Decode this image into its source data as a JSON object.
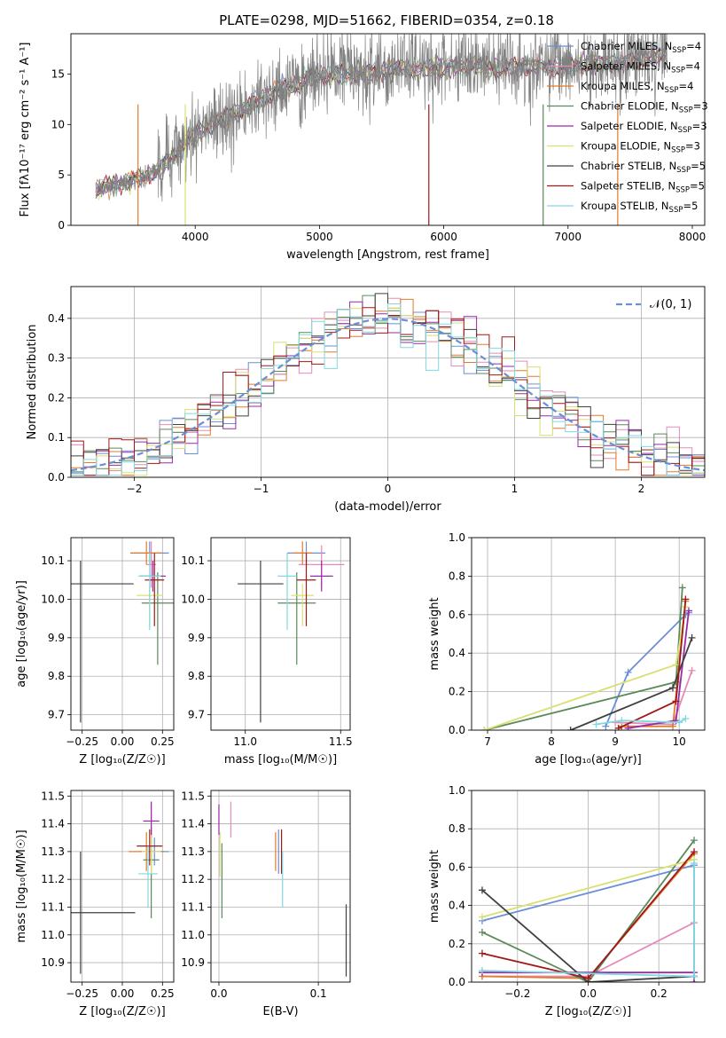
{
  "figure_title": "PLATE=0298, MJD=51662, FIBERID=0354, z=0.18",
  "colors": [
    "#6a8fd8",
    "#e68ab8",
    "#e07b2a",
    "#5a8a5a",
    "#9a2aa8",
    "#d8e070",
    "#404040",
    "#a01818",
    "#80d8e0"
  ],
  "chart_data": [
    {
      "id": "spectrum",
      "type": "line",
      "title": "PLATE=0298, MJD=51662, FIBERID=0354, z=0.18",
      "xlabel": "wavelength [Angstrom, rest frame]",
      "ylabel": "Flux [fλ10⁻¹⁷ erg cm⁻² s⁻¹ A⁻¹]",
      "xlim": [
        3000,
        8100
      ],
      "ylim": [
        0,
        19
      ],
      "xticks": [
        "4000",
        "5000",
        "6000",
        "7000",
        "8000"
      ],
      "yticks": [
        "0",
        "5",
        "10",
        "15"
      ],
      "data_color": "#808080",
      "legend": [
        "Chabrier MILES, N_SSP=4",
        "Salpeter MILES, N_SSP=4",
        "Kroupa MILES, N_SSP=4",
        "Chabrier ELODIE, N_SSP=3",
        "Salpeter ELODIE, N_SSP=3",
        "Kroupa ELODIE, N_SSP=3",
        "Chabrier STELIB, N_SSP=5",
        "Salpeter STELIB, N_SSP=5",
        "Kroupa STELIB, N_SSP=5"
      ],
      "legend_placement": "right",
      "continuum": {
        "x": [
          3200,
          3400,
          3600,
          3800,
          3950,
          4050,
          4200,
          4400,
          4600,
          4800,
          5000,
          5200,
          5400,
          5600,
          5800,
          6000,
          6200,
          6400,
          6600,
          6800,
          7000,
          7200,
          7400,
          7600,
          7800
        ],
        "y": [
          3.5,
          4.2,
          4.8,
          6.5,
          8.5,
          9.5,
          10.5,
          11.5,
          13.0,
          14.0,
          14.8,
          15.0,
          15.2,
          15.5,
          15.5,
          15.6,
          15.8,
          15.6,
          15.7,
          15.8,
          15.8,
          16.0,
          16.1,
          16.5,
          17.0
        ]
      }
    },
    {
      "id": "residuals",
      "type": "line",
      "xlabel": "(data-model)/error",
      "ylabel": "Normed distribution",
      "xlim": [
        -2.5,
        2.5
      ],
      "ylim": [
        0,
        0.48
      ],
      "xticks": [
        "−2",
        "−1",
        "0",
        "1",
        "2"
      ],
      "yticks": [
        "0.0",
        "0.1",
        "0.2",
        "0.3",
        "0.4"
      ],
      "legend": [
        "𝒩(0, 1)"
      ],
      "legend_placement": "top-right",
      "grid": true
    },
    {
      "id": "age-vs-z",
      "type": "scatter",
      "xlabel": "Z [log₁₀(Z/Z☉)]",
      "ylabel": "age  [log₁₀(age/yr)]",
      "xlim": [
        -0.32,
        0.32
      ],
      "ylim": [
        9.66,
        10.16
      ],
      "xticks": [
        "−0.25",
        "0.00",
        "0.25"
      ],
      "yticks": [
        "9.7",
        "9.8",
        "9.9",
        "10.0",
        "10.1"
      ],
      "points": [
        {
          "x": 0.17,
          "y": 10.12,
          "xerr": 0.12,
          "yerr": [
            0.03,
            0.03
          ]
        },
        {
          "x": 0.18,
          "y": 10.09,
          "xerr": 0.03,
          "yerr": [
            0.06,
            0.06
          ]
        },
        {
          "x": 0.15,
          "y": 10.12,
          "xerr": 0.1,
          "yerr": [
            0.03,
            0.03
          ]
        },
        {
          "x": 0.22,
          "y": 9.99,
          "xerr": 0.1,
          "yerr": [
            0.16,
            0.08
          ]
        },
        {
          "x": 0.19,
          "y": 10.06,
          "xerr": 0.08,
          "yerr": [
            0.04,
            0.04
          ]
        },
        {
          "x": 0.17,
          "y": 10.01,
          "xerr": 0.08,
          "yerr": [
            0.08,
            0.03
          ]
        },
        {
          "x": -0.26,
          "y": 10.04,
          "xerr": 0.33,
          "yerr": [
            0.36,
            0.06
          ]
        },
        {
          "x": 0.2,
          "y": 10.05,
          "xerr": 0.06,
          "yerr": [
            0.12,
            0.07
          ]
        },
        {
          "x": 0.17,
          "y": 10.06,
          "xerr": 0.07,
          "yerr": [
            0.14,
            0.06
          ]
        }
      ]
    },
    {
      "id": "age-vs-mass",
      "type": "scatter",
      "xlabel": "mass [log₁₀(M/M☉)]",
      "ylabel": "",
      "xlim": [
        10.82,
        11.55
      ],
      "ylim": [
        9.66,
        10.16
      ],
      "xticks": [
        "11.0",
        "11.5"
      ],
      "yticks": [
        "9.7",
        "9.8",
        "9.9",
        "10.0",
        "10.1"
      ],
      "points": [
        {
          "x": 11.32,
          "y": 10.12,
          "xerr": 0.1,
          "yerr": [
            0.03,
            0.03
          ]
        },
        {
          "x": 11.4,
          "y": 10.09,
          "xerr": 0.12,
          "yerr": [
            0.06,
            0.05
          ]
        },
        {
          "x": 11.3,
          "y": 10.12,
          "xerr": 0.05,
          "yerr": [
            0.03,
            0.03
          ]
        },
        {
          "x": 11.27,
          "y": 9.99,
          "xerr": 0.1,
          "yerr": [
            0.16,
            0.08
          ]
        },
        {
          "x": 11.4,
          "y": 10.06,
          "xerr": 0.06,
          "yerr": [
            0.04,
            0.04
          ]
        },
        {
          "x": 11.3,
          "y": 10.01,
          "xerr": 0.06,
          "yerr": [
            0.08,
            0.03
          ]
        },
        {
          "x": 11.08,
          "y": 10.04,
          "xerr": 0.12,
          "yerr": [
            0.36,
            0.06
          ]
        },
        {
          "x": 11.32,
          "y": 10.05,
          "xerr": 0.05,
          "yerr": [
            0.12,
            0.07
          ]
        },
        {
          "x": 11.22,
          "y": 10.06,
          "xerr": 0.05,
          "yerr": [
            0.14,
            0.06
          ]
        }
      ]
    },
    {
      "id": "weight-vs-age",
      "type": "line",
      "xlabel": "age  [log₁₀(age/yr)]",
      "ylabel": "mass weight",
      "xlim": [
        6.75,
        10.4
      ],
      "ylim": [
        0,
        1.0
      ],
      "xticks": [
        "7",
        "8",
        "9",
        "10"
      ],
      "yticks": [
        "0.0",
        "0.2",
        "0.4",
        "0.6",
        "0.8",
        "1.0"
      ],
      "grid": true,
      "series": [
        {
          "x": [
            8.85,
            9.2,
            10.1,
            10.15
          ],
          "y": [
            0.02,
            0.3,
            0.6,
            0.61
          ]
        },
        {
          "x": [
            9.0,
            9.9,
            10.2
          ],
          "y": [
            0.04,
            0.03,
            0.31
          ]
        },
        {
          "x": [
            9.1,
            9.9,
            10.1
          ],
          "y": [
            0.02,
            0.02,
            0.67
          ]
        },
        {
          "x": [
            6.95,
            9.95,
            10.05
          ],
          "y": [
            0.0,
            0.25,
            0.74
          ]
        },
        {
          "x": [
            9.2,
            9.95,
            10.15
          ],
          "y": [
            0.01,
            0.05,
            0.62
          ]
        },
        {
          "x": [
            6.95,
            9.95,
            10.1
          ],
          "y": [
            0.0,
            0.34,
            0.64
          ]
        },
        {
          "x": [
            8.3,
            9.9,
            10.2
          ],
          "y": [
            0.0,
            0.22,
            0.48
          ]
        },
        {
          "x": [
            9.05,
            9.95,
            10.1
          ],
          "y": [
            0.01,
            0.15,
            0.68
          ]
        },
        {
          "x": [
            8.7,
            9.1,
            10.0,
            10.1
          ],
          "y": [
            0.03,
            0.05,
            0.04,
            0.06
          ]
        }
      ]
    },
    {
      "id": "mass-vs-z",
      "type": "scatter",
      "xlabel": "Z [log₁₀(Z/Z☉)]",
      "ylabel": "mass [log₁₀(M/M☉)]",
      "xlim": [
        -0.32,
        0.32
      ],
      "ylim": [
        10.83,
        11.52
      ],
      "xticks": [
        "−0.25",
        "0.00",
        "0.25"
      ],
      "yticks": [
        "10.9",
        "11.0",
        "11.1",
        "11.2",
        "11.3",
        "11.4",
        "11.5"
      ],
      "points": [
        {
          "x": 0.2,
          "y": 11.3,
          "xerr": 0.09,
          "yerr": [
            0.05,
            0.05
          ]
        },
        {
          "x": 0.18,
          "y": 11.41,
          "xerr": 0.05,
          "yerr": [
            0.06,
            0.07
          ]
        },
        {
          "x": 0.15,
          "y": 11.3,
          "xerr": 0.11,
          "yerr": [
            0.07,
            0.07
          ]
        },
        {
          "x": 0.18,
          "y": 11.27,
          "xerr": 0.05,
          "yerr": [
            0.21,
            0.12
          ]
        },
        {
          "x": 0.18,
          "y": 11.41,
          "xerr": 0.05,
          "yerr": [
            0.06,
            0.07
          ]
        },
        {
          "x": 0.18,
          "y": 11.3,
          "xerr": 0.06,
          "yerr": [
            0.08,
            0.06
          ]
        },
        {
          "x": -0.26,
          "y": 11.08,
          "xerr": 0.34,
          "yerr": [
            0.22,
            0.22
          ]
        },
        {
          "x": 0.17,
          "y": 11.32,
          "xerr": 0.08,
          "yerr": [
            0.07,
            0.06
          ]
        },
        {
          "x": 0.16,
          "y": 11.22,
          "xerr": 0.06,
          "yerr": [
            0.12,
            0.1
          ]
        }
      ]
    },
    {
      "id": "mass-vs-ebv",
      "type": "scatter",
      "xlabel": "E(B-V)",
      "ylabel": "",
      "xlim": [
        -0.008,
        0.132
      ],
      "ylim": [
        10.83,
        11.52
      ],
      "xticks": [
        "0.0",
        "0.1"
      ],
      "yticks": [
        "10.9",
        "11.0",
        "11.1",
        "11.2",
        "11.3",
        "11.4",
        "11.5"
      ],
      "points": [
        {
          "x": 0.06,
          "y": 11.3,
          "yerr": [
            0.08,
            0.08
          ]
        },
        {
          "x": 0.012,
          "y": 11.41,
          "yerr": [
            0.06,
            0.07
          ]
        },
        {
          "x": 0.057,
          "y": 11.3,
          "yerr": [
            0.07,
            0.07
          ]
        },
        {
          "x": 0.003,
          "y": 11.21,
          "yerr": [
            0.15,
            0.12
          ]
        },
        {
          "x": 0.0,
          "y": 11.41,
          "yerr": [
            0.05,
            0.06
          ]
        },
        {
          "x": 0.001,
          "y": 11.29,
          "yerr": [
            0.08,
            0.08
          ]
        },
        {
          "x": 0.128,
          "y": 10.98,
          "yerr": [
            0.13,
            0.13
          ]
        },
        {
          "x": 0.063,
          "y": 11.3,
          "yerr": [
            0.08,
            0.08
          ]
        },
        {
          "x": 0.064,
          "y": 11.2,
          "yerr": [
            0.1,
            0.1
          ]
        }
      ]
    },
    {
      "id": "weight-vs-z",
      "type": "line",
      "xlabel": "Z [log₁₀(Z/Z☉)]",
      "ylabel": "mass weight",
      "xlim": [
        -0.33,
        0.33
      ],
      "ylim": [
        0,
        1.0
      ],
      "xticks": [
        "−0.2",
        "0.0",
        "0.2"
      ],
      "yticks": [
        "0.0",
        "0.2",
        "0.4",
        "0.6",
        "0.8",
        "1.0"
      ],
      "grid": true,
      "series": [
        {
          "x": [
            -0.3,
            0.3,
            0.3
          ],
          "y": [
            0.32,
            0.61,
            0.03
          ]
        },
        {
          "x": [
            -0.3,
            0.0,
            0.3
          ],
          "y": [
            0.03,
            0.03,
            0.31
          ]
        },
        {
          "x": [
            -0.3,
            0.0,
            0.3
          ],
          "y": [
            0.03,
            0.02,
            0.67
          ]
        },
        {
          "x": [
            -0.3,
            0.0,
            0.3
          ],
          "y": [
            0.26,
            0.0,
            0.74
          ]
        },
        {
          "x": [
            -0.3,
            0.3,
            0.3
          ],
          "y": [
            0.05,
            0.05,
            0.0
          ]
        },
        {
          "x": [
            -0.3,
            0.3
          ],
          "y": [
            0.34,
            0.64
          ]
        },
        {
          "x": [
            -0.3,
            0.0,
            0.3
          ],
          "y": [
            0.48,
            0.0,
            0.03
          ]
        },
        {
          "x": [
            -0.3,
            0.0,
            0.3
          ],
          "y": [
            0.15,
            0.02,
            0.68
          ]
        },
        {
          "x": [
            -0.3,
            0.3,
            0.3
          ],
          "y": [
            0.06,
            0.03,
            0.62
          ]
        }
      ]
    }
  ]
}
